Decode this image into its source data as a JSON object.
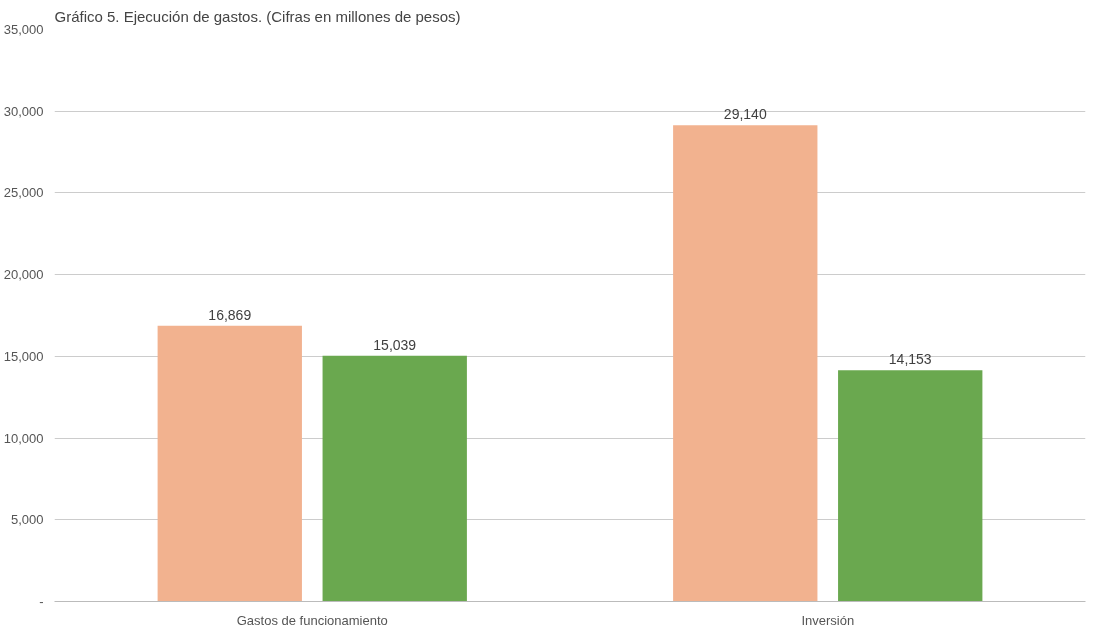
{
  "chart_data": {
    "type": "bar",
    "title": "Gráfico 5. Ejecución de gastos. (Cifras en millones de pesos)",
    "categories": [
      "Gastos de funcionamiento",
      "Inversión"
    ],
    "series": [
      {
        "color": "#f2b28f",
        "values": [
          16869,
          29140
        ],
        "value_labels": [
          "16,869",
          "29,140"
        ]
      },
      {
        "color": "#6aa84f",
        "values": [
          15039,
          14153
        ],
        "value_labels": [
          "15,039",
          "14,153"
        ]
      }
    ],
    "ylim": [
      0,
      35000
    ],
    "yticks": [
      {
        "value": 0,
        "label": "-"
      },
      {
        "value": 5000,
        "label": "5,000"
      },
      {
        "value": 10000,
        "label": "10,000"
      },
      {
        "value": 15000,
        "label": "15,000"
      },
      {
        "value": 20000,
        "label": "20,000"
      },
      {
        "value": 25000,
        "label": "25,000"
      },
      {
        "value": 30000,
        "label": "30,000"
      },
      {
        "value": 35000,
        "label": "35,000"
      }
    ],
    "grid": "y"
  }
}
